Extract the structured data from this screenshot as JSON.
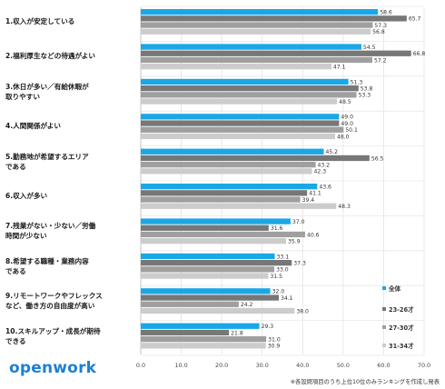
{
  "chart_data": {
    "type": "bar",
    "orientation": "horizontal",
    "categories": [
      "1.収入が安定している",
      "2.福利厚生などの待遇がよい",
      "3.休日が多い／有給休暇が\n取りやすい",
      "4.人間関係がよい",
      "5.勤務地が希望するエリア\nである",
      "6.収入が多い",
      "7.残業がない・少ない／労働\n時間が少ない",
      "8.希望する職種・業務内容\nである",
      "9.リモートワークやフレックス\nなど、働き方の自由度が高い",
      "10.スキルアップ・成長が期待\nできる"
    ],
    "series": [
      {
        "name": "全体",
        "color": "#1aa7e6",
        "values": [
          58.6,
          54.5,
          51.3,
          49.0,
          45.2,
          43.6,
          37.0,
          33.1,
          32.0,
          29.3
        ]
      },
      {
        "name": "23-26才",
        "color": "#777777",
        "values": [
          65.7,
          66.8,
          53.8,
          49.0,
          56.5,
          41.1,
          31.6,
          37.3,
          34.1,
          21.8
        ]
      },
      {
        "name": "27-30才",
        "color": "#9f9f9f",
        "values": [
          57.3,
          57.2,
          53.3,
          50.1,
          43.2,
          39.4,
          40.6,
          33.0,
          24.2,
          31.0
        ]
      },
      {
        "name": "31-34才",
        "color": "#cccccc",
        "values": [
          56.8,
          47.1,
          48.5,
          48.0,
          42.3,
          48.3,
          35.9,
          31.5,
          38.0,
          30.9
        ]
      }
    ],
    "xlim": [
      0,
      70
    ],
    "xticks": [
      "0.0",
      "10.0",
      "20.0",
      "30.0",
      "40.0",
      "50.0",
      "60.0",
      "70.0"
    ],
    "grid": "vertical",
    "legend_position": "right"
  },
  "brand": "openwork",
  "footnote": "※各設問項目のうち上位10位のみランキングを作成し発表"
}
